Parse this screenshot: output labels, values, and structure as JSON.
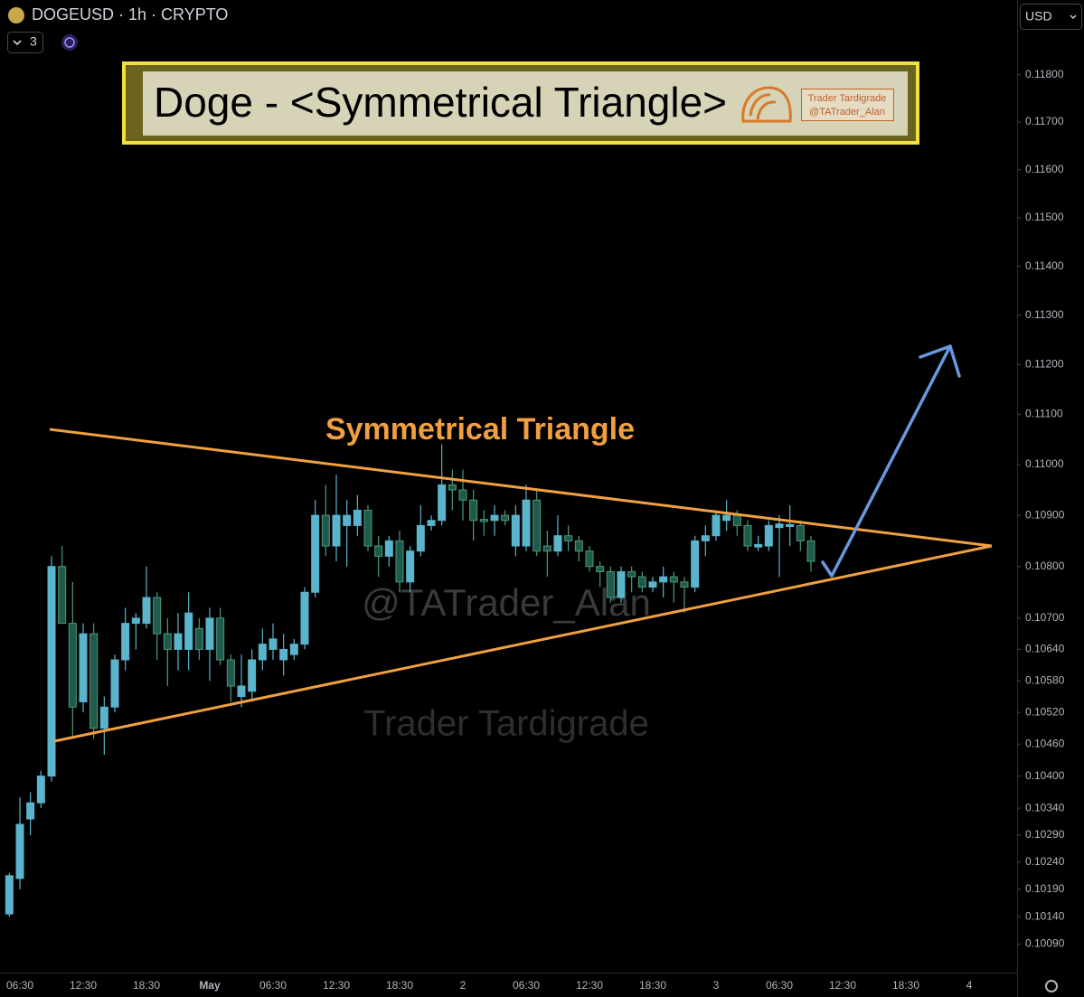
{
  "header": {
    "symbol": "DOGEUSD · 1h · CRYPTO",
    "indicator_count": 3,
    "currency": "USD"
  },
  "chart_data": {
    "type": "candlestick",
    "title": "Doge - <Symmetrical Triangle>",
    "badge": [
      "Trader Tardigrade",
      "@TATrader_Alan"
    ],
    "annotations": [
      "Symmetrical Triangle",
      "@TATrader_Alan",
      "Trader Tardigrade"
    ],
    "log_scale": true,
    "grid": false,
    "up_color": "#5ab4cc",
    "down_color": "#1f5a4c",
    "ylim": [
      0.1004,
      0.1196
    ],
    "yticks": [
      {
        "value": 0.118,
        "label": "0.11800"
      },
      {
        "value": 0.117,
        "label": "0.11700"
      },
      {
        "value": 0.116,
        "label": "0.11600"
      },
      {
        "value": 0.115,
        "label": "0.11500"
      },
      {
        "value": 0.114,
        "label": "0.11400"
      },
      {
        "value": 0.113,
        "label": "0.11300"
      },
      {
        "value": 0.112,
        "label": "0.11200"
      },
      {
        "value": 0.111,
        "label": "0.11100"
      },
      {
        "value": 0.11,
        "label": "0.11000"
      },
      {
        "value": 0.109,
        "label": "0.10900"
      },
      {
        "value": 0.108,
        "label": "0.10800"
      },
      {
        "value": 0.107,
        "label": "0.10700"
      },
      {
        "value": 0.1064,
        "label": "0.10640"
      },
      {
        "value": 0.1058,
        "label": "0.10580"
      },
      {
        "value": 0.1052,
        "label": "0.10520"
      },
      {
        "value": 0.1046,
        "label": "0.10460"
      },
      {
        "value": 0.104,
        "label": "0.10400"
      },
      {
        "value": 0.1034,
        "label": "0.10340"
      },
      {
        "value": 0.1029,
        "label": "0.10290"
      },
      {
        "value": 0.1024,
        "label": "0.10240"
      },
      {
        "value": 0.1019,
        "label": "0.10190"
      },
      {
        "value": 0.1014,
        "label": "0.10140"
      },
      {
        "value": 0.1009,
        "label": "0.10090"
      }
    ],
    "categories": [
      null,
      "06:30",
      null,
      null,
      null,
      null,
      null,
      "12:30",
      null,
      null,
      null,
      null,
      null,
      "18:30",
      null,
      null,
      null,
      null,
      null,
      "May",
      null,
      null,
      null,
      null,
      null,
      "06:30",
      null,
      null,
      null,
      null,
      null,
      "12:30",
      null,
      null,
      null,
      null,
      null,
      "18:30",
      null,
      null,
      null,
      null,
      null,
      "2",
      null,
      null,
      null,
      null,
      null,
      "06:30",
      null,
      null,
      null,
      null,
      null,
      "12:30",
      null,
      null,
      null,
      null,
      null,
      "18:30",
      null,
      null,
      null,
      null,
      null,
      "3",
      null,
      null,
      null,
      null,
      null,
      "06:30",
      null,
      null,
      null,
      null,
      null,
      "12:30",
      null,
      null,
      null,
      null,
      null,
      "18:30",
      null,
      null,
      null,
      null,
      null,
      "4",
      null,
      null,
      null
    ],
    "open": [
      0.10145,
      0.1021,
      0.1032,
      0.1035,
      0.104,
      0.108,
      0.1069,
      0.1054,
      0.1067,
      0.1049,
      0.1053,
      0.1062,
      0.1069,
      0.1069,
      0.1074,
      0.1067,
      0.1064,
      0.1064,
      0.1068,
      0.1064,
      0.107,
      0.1062,
      0.1055,
      0.1056,
      0.1062,
      0.1064,
      0.1062,
      0.1063,
      0.1065,
      0.1075,
      0.109,
      0.1084,
      0.1088,
      0.1088,
      0.1091,
      0.1084,
      0.1082,
      0.1085,
      0.1077,
      0.1083,
      0.1088,
      0.1089,
      0.1096,
      0.1095,
      0.1093,
      0.10892,
      0.1089,
      0.109,
      0.1084,
      0.1084,
      0.1093,
      0.1084,
      0.1083,
      0.1086,
      0.1085,
      0.1083,
      0.108,
      0.1079,
      0.1074,
      0.1079,
      0.1078,
      0.1076,
      0.1077,
      0.1078,
      0.1077,
      0.1076,
      0.1085,
      0.1086,
      0.1089,
      0.109,
      0.1088,
      0.10838,
      0.1084,
      0.10876,
      0.10878,
      0.1088,
      0.1085,
      null,
      null,
      null,
      null,
      null,
      null,
      null,
      null,
      null,
      null,
      null,
      null,
      null,
      null,
      null,
      null,
      null,
      null
    ],
    "high": [
      0.1022,
      0.1036,
      0.1037,
      0.1041,
      0.1082,
      0.1084,
      0.1077,
      0.1069,
      0.1069,
      0.1055,
      0.1063,
      0.1072,
      0.1071,
      0.108,
      0.1075,
      0.107,
      0.1071,
      0.1075,
      0.107,
      0.1072,
      0.1072,
      0.1063,
      0.1063,
      0.1064,
      0.1068,
      0.1069,
      0.1067,
      0.1066,
      0.1076,
      0.1093,
      0.1096,
      0.1098,
      0.1093,
      0.1094,
      0.1092,
      0.1086,
      0.1086,
      0.1087,
      0.1084,
      0.1092,
      0.109,
      0.1104,
      0.1099,
      0.1099,
      0.1095,
      0.1091,
      0.1092,
      0.1091,
      0.1092,
      0.1096,
      0.1095,
      0.1087,
      0.109,
      0.1088,
      0.1086,
      0.1084,
      0.1081,
      0.108,
      0.108,
      0.108,
      0.1079,
      0.1078,
      0.108,
      0.1079,
      0.1078,
      0.1086,
      0.1088,
      0.1091,
      0.1093,
      0.1091,
      0.1089,
      0.1086,
      0.1089,
      0.109,
      0.1092,
      0.1089,
      0.1086,
      null,
      null,
      null,
      null,
      null,
      null,
      null,
      null,
      null,
      null,
      null,
      null,
      null,
      null,
      null,
      null,
      null,
      null
    ],
    "low": [
      0.1014,
      0.1019,
      0.1029,
      0.1034,
      0.1039,
      0.1069,
      0.1047,
      0.1052,
      0.1047,
      0.1044,
      0.1052,
      0.106,
      0.1064,
      0.1068,
      0.1062,
      0.1057,
      0.106,
      0.106,
      0.1062,
      0.1058,
      0.1061,
      0.1054,
      0.1053,
      0.1054,
      0.106,
      0.1062,
      0.1059,
      0.1062,
      0.1064,
      0.1074,
      0.1082,
      0.1081,
      0.108,
      0.1086,
      0.1083,
      0.1078,
      0.108,
      0.1075,
      0.1075,
      0.1082,
      0.1087,
      0.1088,
      0.1091,
      0.1089,
      0.1085,
      0.1086,
      0.1086,
      0.1088,
      0.1082,
      0.1083,
      0.1082,
      0.1078,
      0.1082,
      0.1083,
      0.1081,
      0.1079,
      0.1076,
      0.1073,
      0.1073,
      0.1075,
      0.1075,
      0.1075,
      0.1074,
      0.1073,
      0.1071,
      0.1075,
      0.1082,
      0.1085,
      0.1087,
      0.1086,
      0.1083,
      0.1083,
      0.1083,
      0.1078,
      0.1084,
      0.1083,
      0.1079,
      null,
      null,
      null,
      null,
      null,
      null,
      null,
      null,
      null,
      null,
      null,
      null,
      null,
      null,
      null,
      null,
      null,
      null
    ],
    "close": [
      0.10215,
      0.1031,
      0.1035,
      0.104,
      0.108,
      0.1069,
      0.1053,
      0.1067,
      0.1049,
      0.1053,
      0.1062,
      0.1069,
      0.107,
      0.1074,
      0.1067,
      0.1064,
      0.1067,
      0.1071,
      0.1064,
      0.107,
      0.1062,
      0.1057,
      0.1057,
      0.1062,
      0.1065,
      0.1066,
      0.1064,
      0.1065,
      0.1075,
      0.109,
      0.1084,
      0.109,
      0.109,
      0.1091,
      0.1084,
      0.1082,
      0.1085,
      0.1077,
      0.1083,
      0.1088,
      0.1089,
      0.1096,
      0.1095,
      0.1093,
      0.1089,
      0.10888,
      0.109,
      0.1089,
      0.109,
      0.1093,
      0.1083,
      0.1083,
      0.1086,
      0.1085,
      0.1083,
      0.108,
      0.1079,
      0.1074,
      0.1079,
      0.1078,
      0.1076,
      0.1077,
      0.1078,
      0.1077,
      0.1076,
      0.1085,
      0.1086,
      0.109,
      0.109,
      0.1088,
      0.1084,
      0.10843,
      0.1088,
      0.10883,
      0.10882,
      0.1085,
      0.1081,
      null,
      null,
      null,
      null,
      null,
      null,
      null,
      null,
      null,
      null,
      null,
      null,
      null,
      null,
      null,
      null,
      null,
      null
    ]
  }
}
